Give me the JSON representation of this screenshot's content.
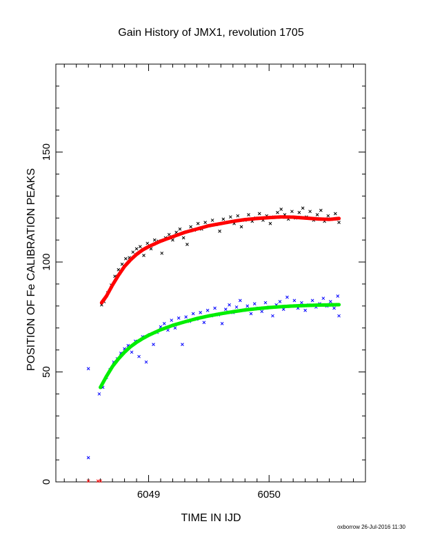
{
  "chart_data": {
    "type": "scatter",
    "title": "Gain History of JMX1, revolution 1705",
    "xlabel": "TIME IN IJD",
    "ylabel": "POSITION OF Fe CALIBRATION PEAKS",
    "xlim": [
      6048.23,
      6050.8
    ],
    "ylim": [
      0,
      190
    ],
    "x_major_ticks": [
      6049,
      6050
    ],
    "x_tick_labels": [
      "6049",
      "6050"
    ],
    "y_major_ticks": [
      0,
      50,
      100,
      150
    ],
    "y_tick_labels": [
      "0",
      "50",
      "100",
      "150"
    ],
    "grid": false,
    "legend": "none",
    "series": [
      {
        "marker": "x",
        "color": "#000000",
        "kind": "measured",
        "points": [
          [
            6048.61,
            80.5
          ],
          [
            6048.63,
            82.0
          ],
          [
            6048.66,
            86.0
          ],
          [
            6048.69,
            89.5
          ],
          [
            6048.72,
            93.5
          ],
          [
            6048.75,
            96.5
          ],
          [
            6048.78,
            99.0
          ],
          [
            6048.81,
            101.5
          ],
          [
            6048.84,
            102.0
          ],
          [
            6048.87,
            104.5
          ],
          [
            6048.9,
            106.0
          ],
          [
            6048.93,
            107.0
          ],
          [
            6048.96,
            103.0
          ],
          [
            6048.99,
            108.5
          ],
          [
            6049.02,
            106.0
          ],
          [
            6049.05,
            110.0
          ],
          [
            6049.08,
            109.5
          ],
          [
            6049.11,
            104.0
          ],
          [
            6049.14,
            111.0
          ],
          [
            6049.17,
            112.5
          ],
          [
            6049.2,
            110.0
          ],
          [
            6049.23,
            113.5
          ],
          [
            6049.26,
            115.0
          ],
          [
            6049.29,
            111.0
          ],
          [
            6049.32,
            108.0
          ],
          [
            6049.35,
            116.0
          ],
          [
            6049.38,
            114.5
          ],
          [
            6049.41,
            117.5
          ],
          [
            6049.44,
            115.0
          ],
          [
            6049.47,
            118.0
          ],
          [
            6049.5,
            116.5
          ],
          [
            6049.53,
            119.0
          ],
          [
            6049.56,
            117.0
          ],
          [
            6049.59,
            114.0
          ],
          [
            6049.62,
            119.5
          ],
          [
            6049.65,
            118.0
          ],
          [
            6049.68,
            120.5
          ],
          [
            6049.71,
            117.5
          ],
          [
            6049.74,
            121.0
          ],
          [
            6049.77,
            116.0
          ],
          [
            6049.8,
            119.0
          ],
          [
            6049.83,
            121.5
          ],
          [
            6049.86,
            118.5
          ],
          [
            6049.89,
            120.0
          ],
          [
            6049.92,
            122.0
          ],
          [
            6049.95,
            119.0
          ],
          [
            6049.98,
            121.0
          ],
          [
            6050.01,
            117.5
          ],
          [
            6050.04,
            120.5
          ],
          [
            6050.07,
            122.5
          ],
          [
            6050.1,
            124.0
          ],
          [
            6050.13,
            121.5
          ],
          [
            6050.16,
            119.5
          ],
          [
            6050.19,
            123.0
          ],
          [
            6050.22,
            120.0
          ],
          [
            6050.25,
            122.5
          ],
          [
            6050.28,
            124.5
          ],
          [
            6050.31,
            120.5
          ],
          [
            6050.34,
            123.0
          ],
          [
            6050.37,
            119.0
          ],
          [
            6050.4,
            121.5
          ],
          [
            6050.43,
            123.5
          ],
          [
            6050.46,
            118.5
          ],
          [
            6050.49,
            121.0
          ],
          [
            6050.52,
            119.5
          ],
          [
            6050.55,
            122.0
          ],
          [
            6050.58,
            118.0
          ]
        ]
      },
      {
        "marker": "dot",
        "color": "#ff0000",
        "kind": "fit",
        "points": [
          [
            6048.61,
            81.5
          ],
          [
            6048.65,
            84.5
          ],
          [
            6048.7,
            89.5
          ],
          [
            6048.75,
            94.0
          ],
          [
            6048.8,
            98.0
          ],
          [
            6048.85,
            101.0
          ],
          [
            6048.9,
            103.5
          ],
          [
            6048.95,
            105.5
          ],
          [
            6049.0,
            107.0
          ],
          [
            6049.1,
            109.5
          ],
          [
            6049.2,
            111.5
          ],
          [
            6049.3,
            113.5
          ],
          [
            6049.4,
            115.0
          ],
          [
            6049.5,
            116.5
          ],
          [
            6049.6,
            117.5
          ],
          [
            6049.7,
            118.5
          ],
          [
            6049.8,
            119.3
          ],
          [
            6049.9,
            119.8
          ],
          [
            6050.0,
            120.2
          ],
          [
            6050.1,
            120.5
          ],
          [
            6050.2,
            120.4
          ],
          [
            6050.3,
            120.0
          ],
          [
            6050.4,
            119.6
          ],
          [
            6050.5,
            119.4
          ],
          [
            6050.58,
            119.8
          ]
        ]
      },
      {
        "marker": "x",
        "color": "#0000ff",
        "kind": "measured",
        "points": [
          [
            6048.5,
            51.5
          ],
          [
            6048.5,
            11.0
          ],
          [
            6048.59,
            40.0
          ],
          [
            6048.62,
            43.0
          ],
          [
            6048.65,
            47.5
          ],
          [
            6048.68,
            51.0
          ],
          [
            6048.71,
            54.5
          ],
          [
            6048.74,
            56.0
          ],
          [
            6048.77,
            58.5
          ],
          [
            6048.8,
            60.5
          ],
          [
            6048.83,
            62.0
          ],
          [
            6048.86,
            59.0
          ],
          [
            6048.89,
            64.0
          ],
          [
            6048.92,
            57.0
          ],
          [
            6048.95,
            66.0
          ],
          [
            6048.98,
            54.5
          ],
          [
            6049.01,
            67.0
          ],
          [
            6049.04,
            62.5
          ],
          [
            6049.07,
            68.0
          ],
          [
            6049.1,
            70.5
          ],
          [
            6049.13,
            72.0
          ],
          [
            6049.16,
            69.0
          ],
          [
            6049.19,
            73.5
          ],
          [
            6049.22,
            70.0
          ],
          [
            6049.25,
            74.5
          ],
          [
            6049.28,
            62.5
          ],
          [
            6049.31,
            75.0
          ],
          [
            6049.34,
            73.0
          ],
          [
            6049.37,
            76.5
          ],
          [
            6049.4,
            74.0
          ],
          [
            6049.43,
            77.0
          ],
          [
            6049.46,
            72.5
          ],
          [
            6049.49,
            78.0
          ],
          [
            6049.52,
            75.5
          ],
          [
            6049.55,
            79.0
          ],
          [
            6049.58,
            76.0
          ],
          [
            6049.61,
            72.0
          ],
          [
            6049.64,
            78.5
          ],
          [
            6049.67,
            80.5
          ],
          [
            6049.7,
            77.0
          ],
          [
            6049.73,
            79.5
          ],
          [
            6049.76,
            82.5
          ],
          [
            6049.79,
            78.0
          ],
          [
            6049.82,
            80.0
          ],
          [
            6049.85,
            76.5
          ],
          [
            6049.88,
            81.0
          ],
          [
            6049.91,
            79.0
          ],
          [
            6049.94,
            77.5
          ],
          [
            6049.97,
            81.5
          ],
          [
            6050.0,
            79.5
          ],
          [
            6050.03,
            75.5
          ],
          [
            6050.06,
            80.5
          ],
          [
            6050.09,
            82.0
          ],
          [
            6050.12,
            78.5
          ],
          [
            6050.15,
            84.0
          ],
          [
            6050.18,
            80.0
          ],
          [
            6050.21,
            82.5
          ],
          [
            6050.24,
            79.0
          ],
          [
            6050.27,
            81.5
          ],
          [
            6050.3,
            78.0
          ],
          [
            6050.33,
            80.5
          ],
          [
            6050.36,
            82.5
          ],
          [
            6050.39,
            79.5
          ],
          [
            6050.42,
            81.0
          ],
          [
            6050.45,
            83.5
          ],
          [
            6050.48,
            80.0
          ],
          [
            6050.51,
            82.0
          ],
          [
            6050.54,
            79.0
          ],
          [
            6050.57,
            84.5
          ],
          [
            6050.58,
            75.5
          ]
        ]
      },
      {
        "marker": "dot",
        "color": "#00ee00",
        "kind": "fit",
        "points": [
          [
            6048.6,
            43.0
          ],
          [
            6048.65,
            48.0
          ],
          [
            6048.7,
            52.5
          ],
          [
            6048.75,
            56.0
          ],
          [
            6048.8,
            59.0
          ],
          [
            6048.85,
            61.5
          ],
          [
            6048.9,
            63.5
          ],
          [
            6048.95,
            65.2
          ],
          [
            6049.0,
            66.7
          ],
          [
            6049.1,
            69.2
          ],
          [
            6049.2,
            71.2
          ],
          [
            6049.3,
            72.8
          ],
          [
            6049.4,
            74.3
          ],
          [
            6049.5,
            75.5
          ],
          [
            6049.6,
            76.5
          ],
          [
            6049.7,
            77.4
          ],
          [
            6049.8,
            78.2
          ],
          [
            6049.9,
            78.8
          ],
          [
            6050.0,
            79.3
          ],
          [
            6050.1,
            79.7
          ],
          [
            6050.2,
            80.0
          ],
          [
            6050.3,
            80.2
          ],
          [
            6050.4,
            80.4
          ],
          [
            6050.5,
            80.5
          ],
          [
            6050.58,
            80.6
          ]
        ]
      },
      {
        "marker": "x",
        "color": "#ff0000",
        "kind": "measured",
        "points": [
          [
            6048.5,
            0.4
          ],
          [
            6048.58,
            0.4
          ],
          [
            6048.6,
            0.4
          ]
        ]
      }
    ],
    "footer": "oxborrow 26-Jul-2016 11:30"
  }
}
